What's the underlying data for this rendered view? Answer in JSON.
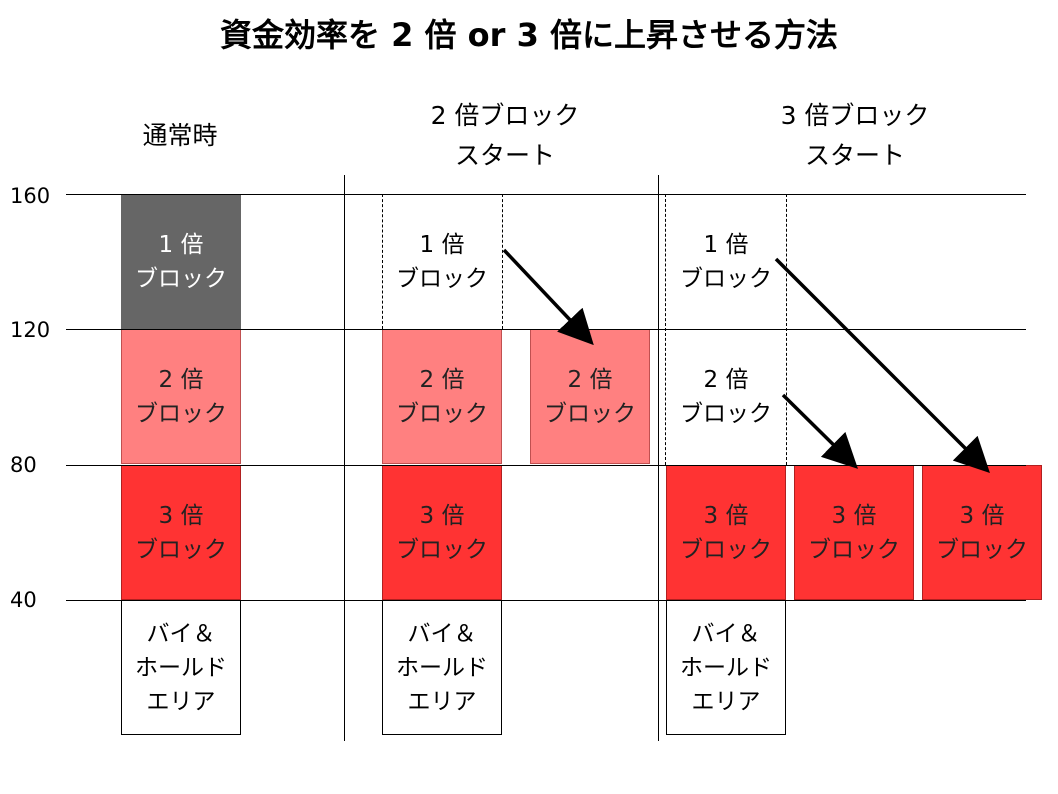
{
  "title": "資金効率を 2 倍  or 3 倍に上昇させる方法",
  "columns": {
    "normal": "通常時",
    "double_line1": "2 倍ブロック",
    "double_line2": "スタート",
    "triple_line1": "3 倍ブロック",
    "triple_line2": "スタート"
  },
  "y_axis": [
    "160",
    "120",
    "80",
    "40"
  ],
  "blocks": {
    "b1_line1": "1 倍",
    "b2_line1": "2 倍",
    "b3_line1": "3 倍",
    "block_word": "ブロック",
    "bh_line1": "バイ＆",
    "bh_line2": "ホールド",
    "bh_line3": "エリア"
  },
  "colors": {
    "one_x_block": "#666666",
    "two_x_block": "#ff8080",
    "three_x_block": "#ff3333"
  }
}
